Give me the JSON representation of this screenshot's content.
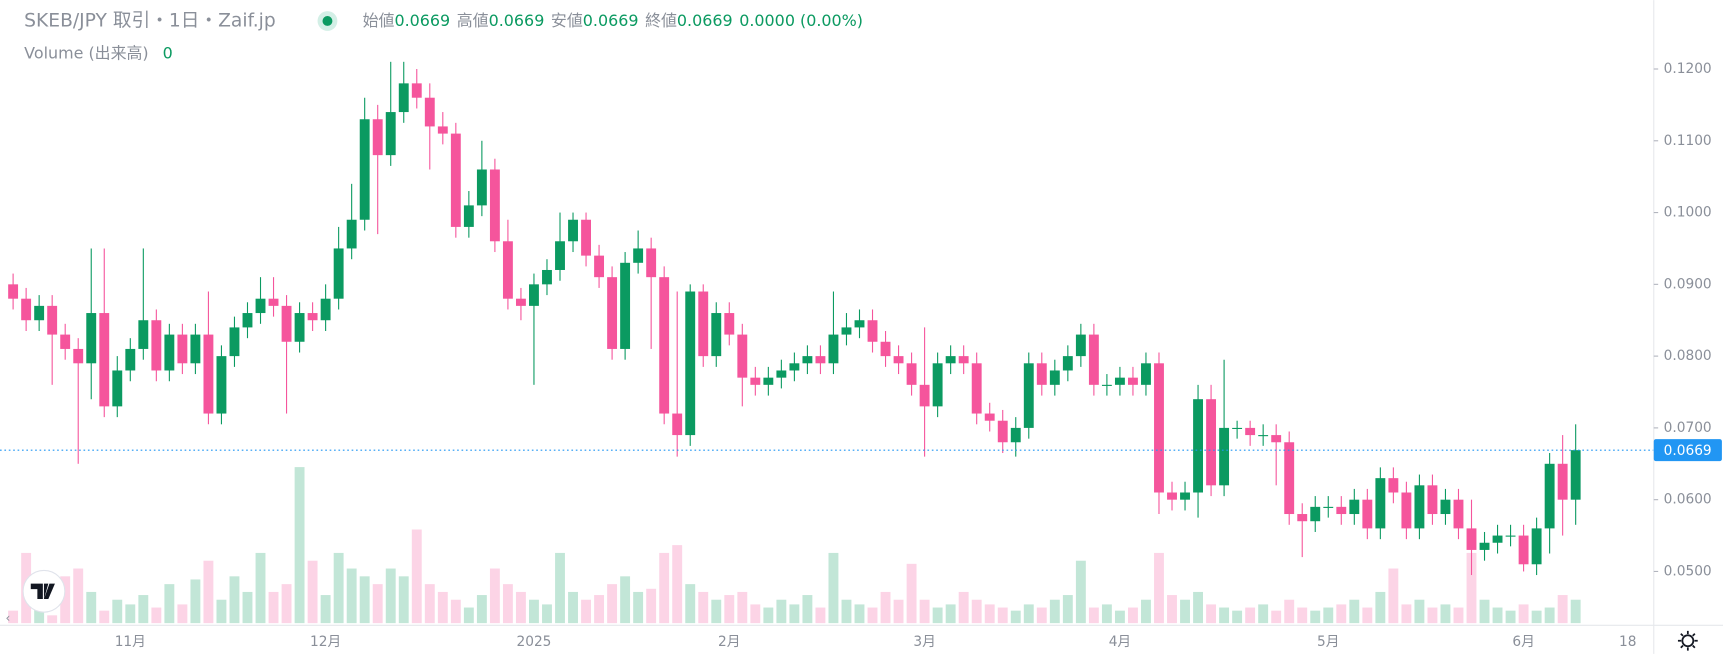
{
  "chart_data": {
    "type": "candlestick",
    "title": "SKEB/JPY 取引・1日・Zaif.jp",
    "legend": [
      {
        "label": "始値",
        "value": "0.0669"
      },
      {
        "label": "高値",
        "value": "0.0669"
      },
      {
        "label": "安値",
        "value": "0.0669"
      },
      {
        "label": "終値",
        "value": "0.0669"
      }
    ],
    "change": "0.0000 (0.00%)",
    "volume_label": "Volume (出来高)",
    "volume_value": 0,
    "current_price": 0.0669,
    "up_color": "#0b9a61",
    "down_color": "#f5559c",
    "categories": [
      null,
      null,
      null,
      null,
      null,
      null,
      null,
      null,
      null,
      "11月",
      null,
      null,
      null,
      null,
      null,
      null,
      null,
      null,
      null,
      null,
      null,
      null,
      null,
      null,
      "12月",
      null,
      null,
      null,
      null,
      null,
      null,
      null,
      null,
      null,
      null,
      null,
      null,
      null,
      null,
      null,
      "2025",
      null,
      null,
      null,
      null,
      null,
      null,
      null,
      null,
      null,
      null,
      null,
      null,
      null,
      null,
      "2月",
      null,
      null,
      null,
      null,
      null,
      null,
      null,
      null,
      null,
      null,
      null,
      null,
      null,
      null,
      "3月",
      null,
      null,
      null,
      null,
      null,
      null,
      null,
      null,
      null,
      null,
      null,
      null,
      null,
      null,
      "4月",
      null,
      null,
      null,
      null,
      null,
      null,
      null,
      null,
      null,
      null,
      null,
      null,
      null,
      null,
      null,
      "5月",
      null,
      null,
      null,
      null,
      null,
      null,
      null,
      null,
      null,
      null,
      null,
      null,
      null,
      null,
      "6月",
      null,
      null,
      null,
      null,
      null,
      null,
      null,
      "18"
    ],
    "open": [
      0.09,
      0.088,
      0.085,
      0.087,
      0.083,
      0.081,
      0.079,
      0.086,
      0.073,
      0.078,
      0.081,
      0.085,
      0.078,
      0.083,
      0.079,
      0.083,
      0.072,
      0.08,
      0.084,
      0.086,
      0.088,
      0.087,
      0.082,
      0.086,
      0.085,
      0.088,
      0.095,
      0.099,
      0.113,
      0.108,
      0.114,
      0.118,
      0.116,
      0.112,
      0.111,
      0.098,
      0.101,
      0.106,
      0.096,
      0.088,
      0.087,
      0.09,
      0.092,
      0.096,
      0.099,
      0.094,
      0.091,
      0.081,
      0.093,
      0.095,
      0.091,
      0.072,
      0.069,
      0.089,
      0.08,
      0.086,
      0.083,
      0.077,
      0.076,
      0.077,
      0.078,
      0.079,
      0.08,
      0.079,
      0.083,
      0.084,
      0.085,
      0.082,
      0.08,
      0.079,
      0.076,
      0.073,
      0.079,
      0.08,
      0.079,
      0.072,
      0.071,
      0.068,
      0.07,
      0.079,
      0.076,
      0.078,
      0.08,
      0.083,
      0.076,
      0.076,
      0.077,
      0.076,
      0.079,
      0.061,
      0.06,
      0.061,
      0.074,
      0.062,
      0.07,
      0.07,
      0.069,
      0.069,
      0.068,
      0.058,
      0.057,
      0.059,
      0.059,
      0.058,
      0.06,
      0.056,
      0.063,
      0.061,
      0.056,
      0.062,
      0.058,
      0.06,
      0.056,
      0.053,
      0.054,
      0.055,
      0.055,
      0.051,
      0.056,
      0.065,
      0.06,
      null,
      null,
      null,
      null
    ],
    "high": [
      0.0915,
      0.0895,
      0.0885,
      0.0885,
      0.0845,
      0.0825,
      0.095,
      0.095,
      0.08,
      0.0825,
      0.095,
      0.0865,
      0.0845,
      0.0845,
      0.0845,
      0.089,
      0.0815,
      0.0855,
      0.0875,
      0.091,
      0.091,
      0.0885,
      0.0875,
      0.0875,
      0.09,
      0.098,
      0.104,
      0.116,
      0.115,
      0.121,
      0.121,
      0.12,
      0.118,
      0.114,
      0.1125,
      0.103,
      0.11,
      0.1075,
      0.099,
      0.0895,
      0.0915,
      0.0935,
      0.1,
      0.1,
      0.1,
      0.0955,
      0.0925,
      0.0945,
      0.0975,
      0.0965,
      0.0925,
      0.089,
      0.09,
      0.09,
      0.0875,
      0.0875,
      0.0845,
      0.0785,
      0.0785,
      0.0795,
      0.0805,
      0.0815,
      0.0815,
      0.089,
      0.086,
      0.0865,
      0.0865,
      0.0835,
      0.0815,
      0.0805,
      0.084,
      0.0805,
      0.0815,
      0.0815,
      0.0805,
      0.0735,
      0.0725,
      0.0715,
      0.0805,
      0.0805,
      0.0795,
      0.0815,
      0.0845,
      0.0845,
      0.0775,
      0.0785,
      0.0785,
      0.0805,
      0.0805,
      0.0625,
      0.0625,
      0.076,
      0.076,
      0.0795,
      0.071,
      0.071,
      0.0705,
      0.0705,
      0.0695,
      0.0595,
      0.0605,
      0.0605,
      0.0605,
      0.0615,
      0.0615,
      0.0645,
      0.0645,
      0.0625,
      0.0635,
      0.0635,
      0.0615,
      0.0615,
      0.06,
      0.0555,
      0.0565,
      0.0565,
      0.0565,
      0.0575,
      0.0665,
      0.069,
      0.0705,
      null,
      null,
      null,
      null
    ],
    "low": [
      0.0865,
      0.0835,
      0.0835,
      0.076,
      0.0795,
      0.065,
      0.074,
      0.0715,
      0.0715,
      0.0765,
      0.0795,
      0.0765,
      0.0765,
      0.0775,
      0.0775,
      0.0705,
      0.0705,
      0.0785,
      0.0825,
      0.0845,
      0.0855,
      0.072,
      0.0805,
      0.0835,
      0.0835,
      0.0865,
      0.0935,
      0.0975,
      0.097,
      0.1065,
      0.1125,
      0.1145,
      0.106,
      0.1095,
      0.0965,
      0.0965,
      0.0995,
      0.0945,
      0.0865,
      0.085,
      0.076,
      0.0885,
      0.0905,
      0.0945,
      0.0925,
      0.0895,
      0.0795,
      0.0795,
      0.0915,
      0.081,
      0.0705,
      0.066,
      0.0675,
      0.0785,
      0.0785,
      0.0815,
      0.073,
      0.0745,
      0.0745,
      0.0755,
      0.0765,
      0.0775,
      0.0775,
      0.0775,
      0.0815,
      0.0825,
      0.0805,
      0.0785,
      0.0775,
      0.0745,
      0.066,
      0.0715,
      0.0775,
      0.0775,
      0.0705,
      0.0695,
      0.0665,
      0.066,
      0.0685,
      0.0745,
      0.0745,
      0.0765,
      0.0785,
      0.0745,
      0.0745,
      0.0745,
      0.0745,
      0.0745,
      0.058,
      0.0585,
      0.0585,
      0.0575,
      0.0605,
      0.0605,
      0.0685,
      0.0675,
      0.0675,
      0.062,
      0.0565,
      0.052,
      0.0555,
      0.0575,
      0.0565,
      0.0565,
      0.0545,
      0.0545,
      0.0595,
      0.0545,
      0.0545,
      0.0565,
      0.0565,
      0.0545,
      0.0495,
      0.0515,
      0.0525,
      0.0535,
      0.05,
      0.0495,
      0.0525,
      0.055,
      0.0565,
      null,
      null,
      null,
      null
    ],
    "close": [
      0.088,
      0.085,
      0.087,
      0.083,
      0.081,
      0.079,
      0.086,
      0.073,
      0.078,
      0.081,
      0.085,
      0.078,
      0.083,
      0.079,
      0.083,
      0.072,
      0.08,
      0.084,
      0.086,
      0.088,
      0.087,
      0.082,
      0.086,
      0.085,
      0.088,
      0.095,
      0.099,
      0.113,
      0.108,
      0.114,
      0.118,
      0.116,
      0.112,
      0.111,
      0.098,
      0.101,
      0.106,
      0.096,
      0.088,
      0.087,
      0.09,
      0.092,
      0.096,
      0.099,
      0.094,
      0.091,
      0.081,
      0.093,
      0.095,
      0.091,
      0.072,
      0.069,
      0.089,
      0.08,
      0.086,
      0.083,
      0.077,
      0.076,
      0.077,
      0.078,
      0.079,
      0.08,
      0.079,
      0.083,
      0.084,
      0.085,
      0.082,
      0.08,
      0.079,
      0.076,
      0.073,
      0.079,
      0.08,
      0.079,
      0.072,
      0.071,
      0.068,
      0.07,
      0.079,
      0.076,
      0.078,
      0.08,
      0.083,
      0.076,
      0.076,
      0.077,
      0.076,
      0.079,
      0.061,
      0.06,
      0.061,
      0.074,
      0.062,
      0.07,
      0.07,
      0.069,
      0.069,
      0.068,
      0.058,
      0.057,
      0.059,
      0.059,
      0.058,
      0.06,
      0.056,
      0.063,
      0.061,
      0.056,
      0.062,
      0.058,
      0.06,
      0.056,
      0.053,
      0.054,
      0.055,
      0.055,
      0.051,
      0.056,
      0.065,
      0.06,
      0.0669,
      null,
      null,
      null,
      null
    ],
    "volume": [
      8,
      45,
      10,
      5,
      30,
      35,
      20,
      8,
      15,
      12,
      18,
      10,
      25,
      12,
      28,
      40,
      15,
      30,
      20,
      45,
      20,
      25,
      100,
      40,
      18,
      45,
      35,
      30,
      25,
      35,
      30,
      60,
      25,
      20,
      15,
      10,
      18,
      35,
      25,
      20,
      15,
      12,
      45,
      20,
      15,
      18,
      25,
      30,
      20,
      22,
      45,
      50,
      25,
      20,
      15,
      18,
      20,
      12,
      10,
      15,
      12,
      18,
      10,
      45,
      15,
      12,
      10,
      20,
      15,
      38,
      15,
      10,
      12,
      20,
      15,
      12,
      10,
      8,
      12,
      10,
      15,
      18,
      40,
      10,
      12,
      8,
      10,
      15,
      45,
      18,
      15,
      20,
      12,
      10,
      8,
      10,
      12,
      8,
      15,
      10,
      8,
      10,
      12,
      15,
      10,
      20,
      35,
      12,
      15,
      10,
      12,
      10,
      45,
      15,
      10,
      8,
      12,
      8,
      10,
      18,
      15,
      null,
      null,
      null,
      null
    ],
    "ylim": [
      0.0428,
      0.1296
    ],
    "yticks": [
      {
        "value": 0.05,
        "label": "0.0500"
      },
      {
        "value": 0.06,
        "label": "0.0600"
      },
      {
        "value": 0.07,
        "label": "0.0700"
      },
      {
        "value": 0.08,
        "label": "0.0800"
      },
      {
        "value": 0.09,
        "label": "0.0900"
      },
      {
        "value": 0.1,
        "label": "0.1000"
      },
      {
        "value": 0.11,
        "label": "0.1100"
      },
      {
        "value": 0.12,
        "label": "0.1200"
      }
    ],
    "y2lim": [
      0,
      100
    ]
  }
}
